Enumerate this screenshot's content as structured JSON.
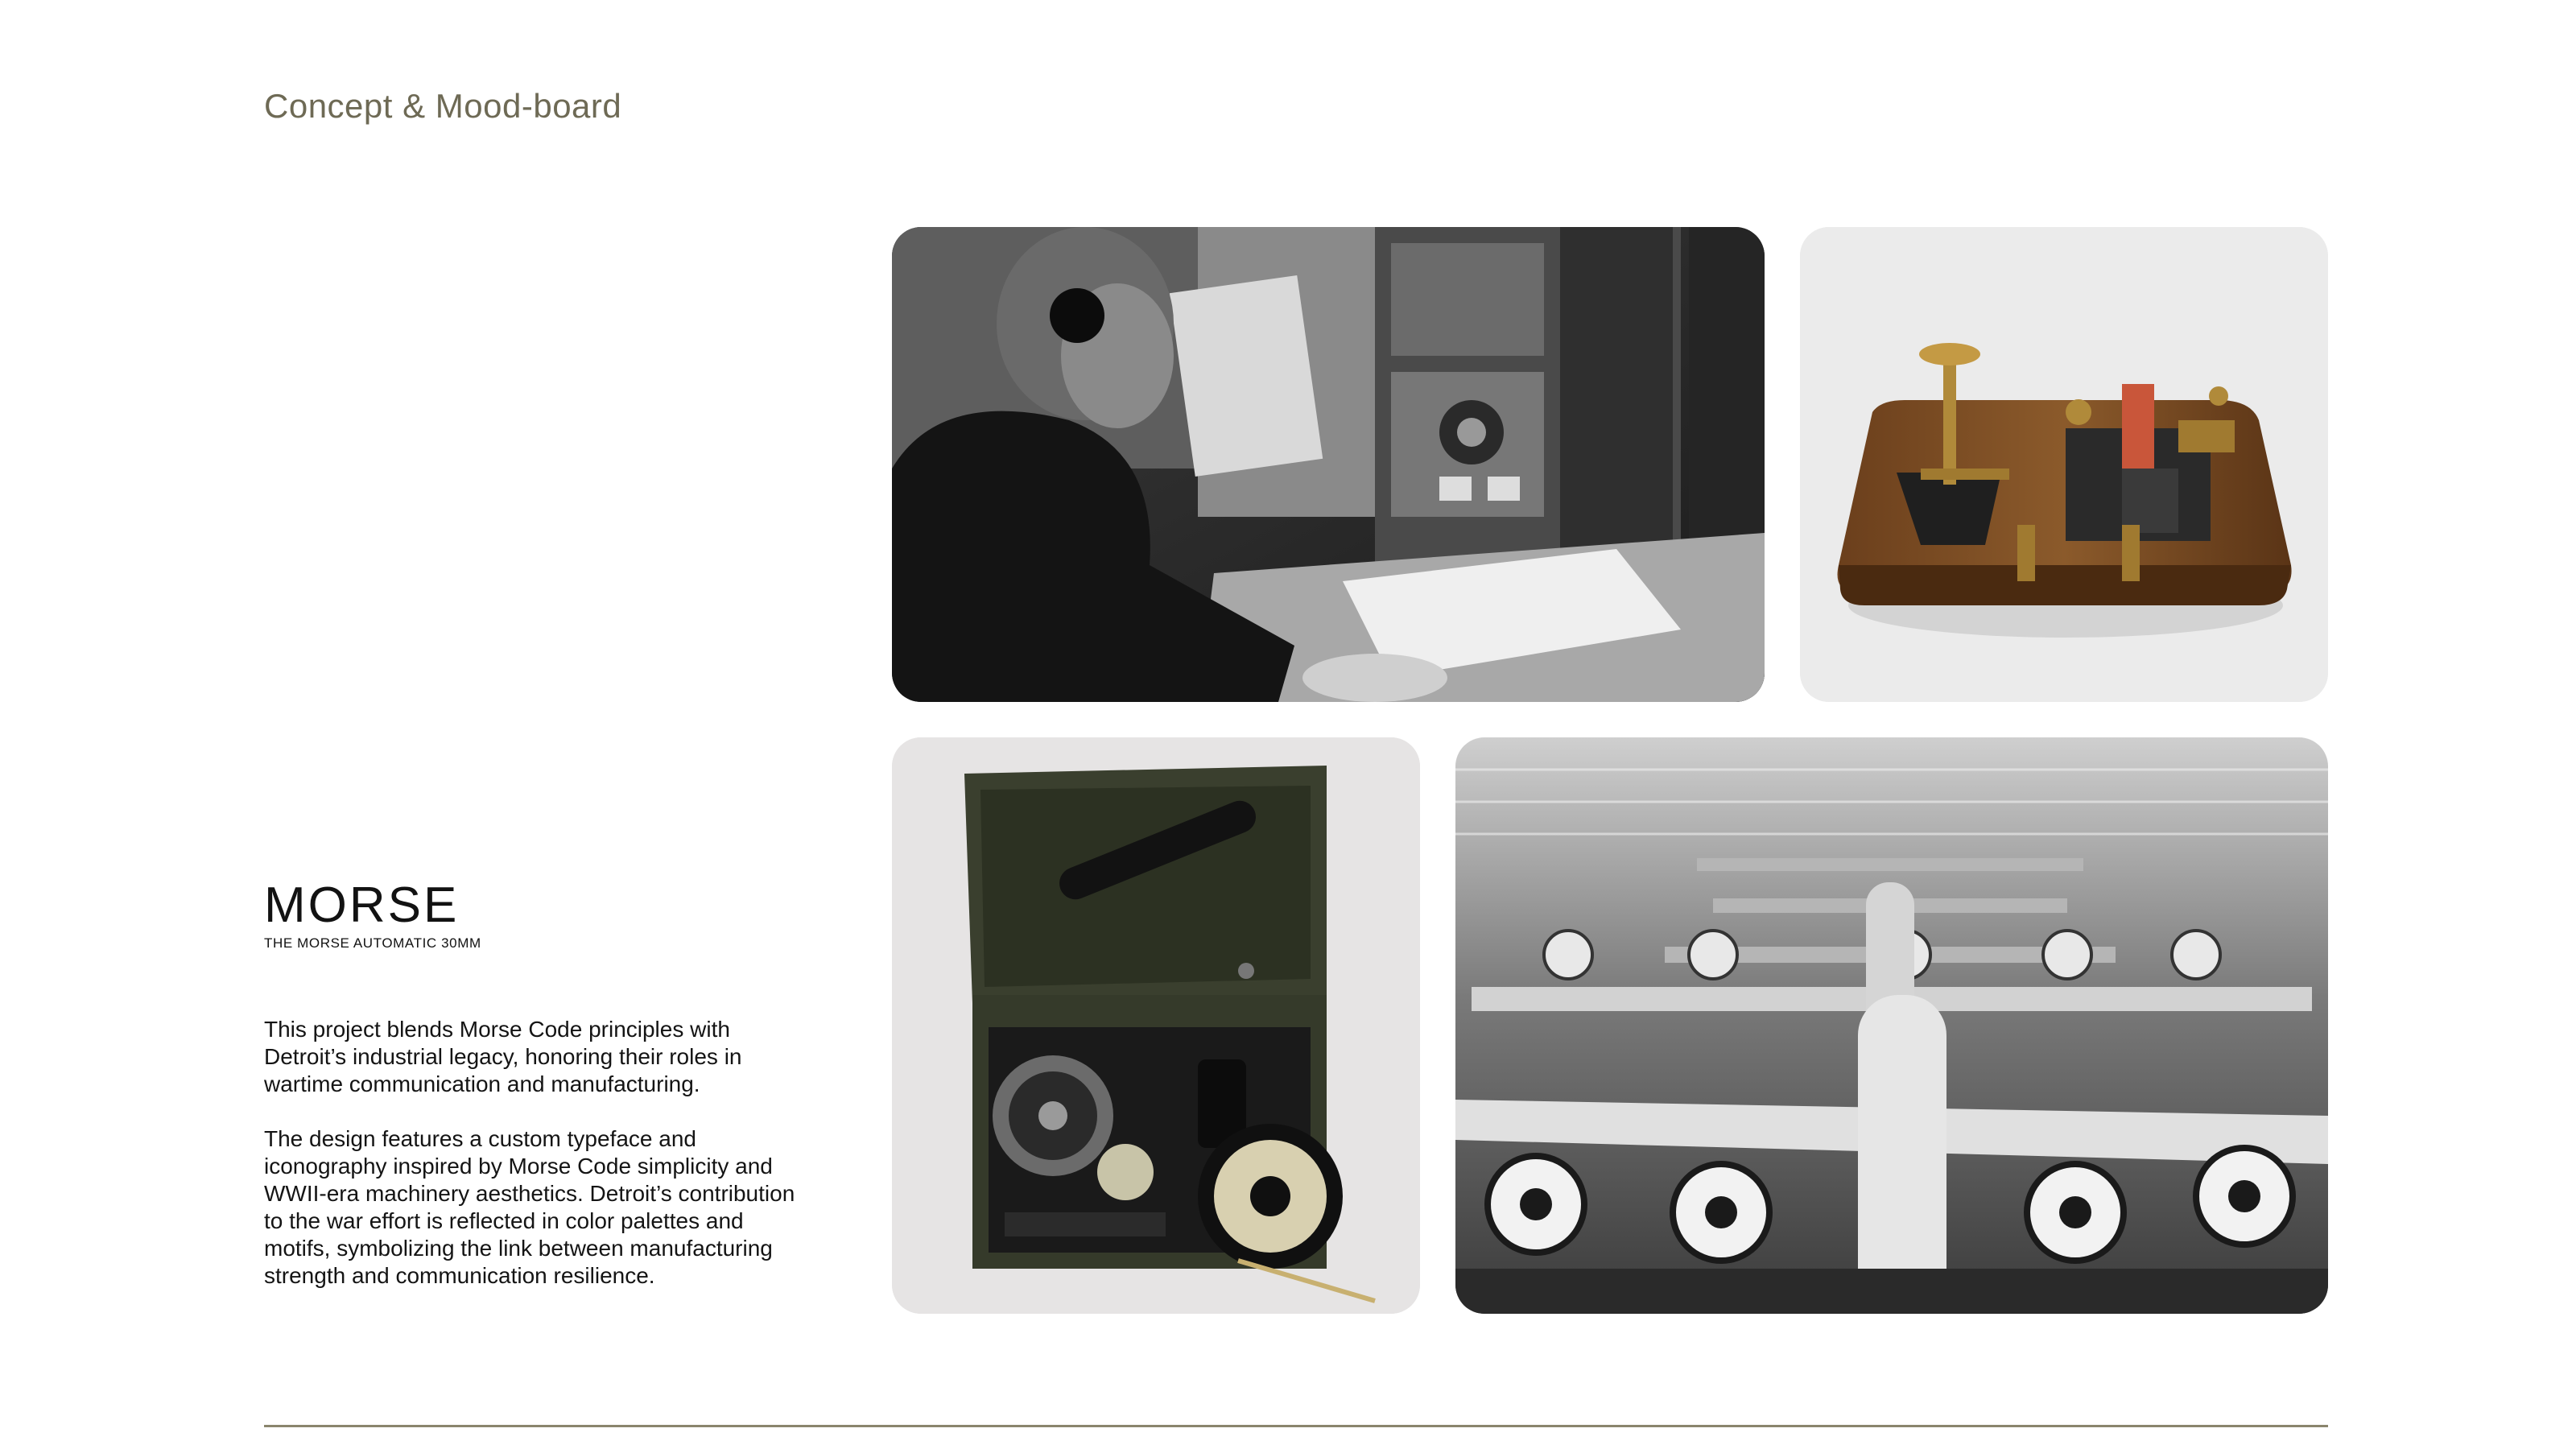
{
  "header": {
    "section_title": "Concept & Mood-board"
  },
  "brand": {
    "name": "MORSE",
    "subtitle": "THE MORSE AUTOMATIC 30MM"
  },
  "description": [
    "This project blends Morse Code principles with Detroit’s industrial legacy, honoring their roles in wartime communication and manufacturing.",
    "The design features a custom typeface and iconography inspired by Morse Code simplicity and WWII-era machinery aesthetics. Detroit’s contribution to the war effort is reflected in color palettes and motifs, symbolizing the link between manufacturing strength and communication resilience."
  ],
  "colors": {
    "accent": "#6e6a55",
    "divider": "#8a856d",
    "text": "#141414"
  }
}
